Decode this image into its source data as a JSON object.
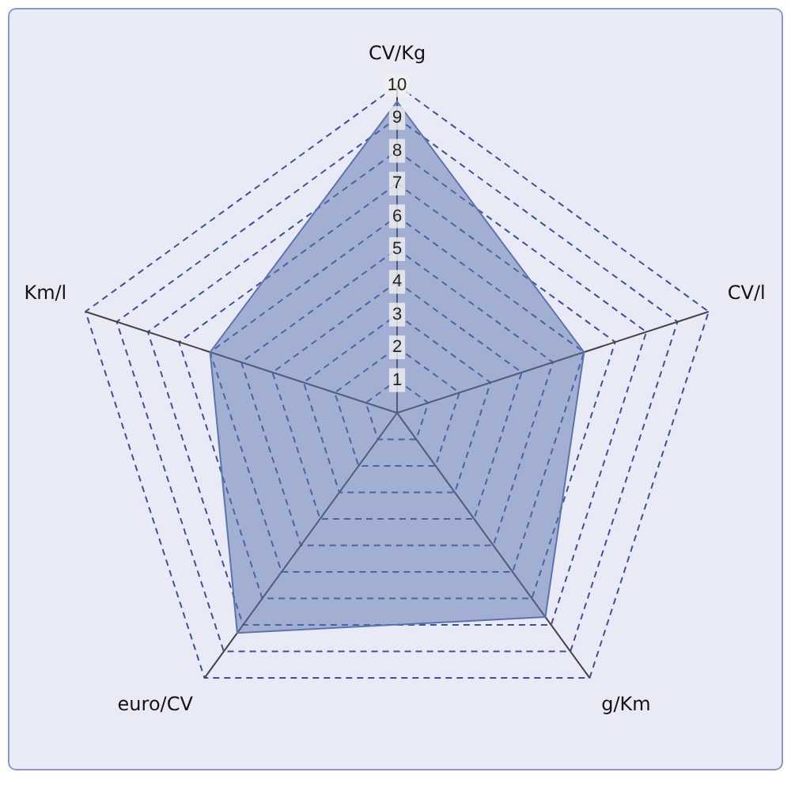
{
  "chart_data": {
    "type": "radar",
    "categories": [
      "CV/Kg",
      "CV/l",
      "g/Km",
      "euro/CV",
      "Km/l"
    ],
    "series": [
      {
        "color": "#5b74b0",
        "values": [
          9.5,
          6,
          7.7,
          8.3,
          6
        ]
      }
    ],
    "ylim": [
      0,
      10
    ],
    "yticks": [
      1,
      2,
      3,
      4,
      5,
      6,
      7,
      8,
      9,
      10
    ],
    "grid": true,
    "legend": false,
    "line_style": "dashed",
    "marker": "none"
  }
}
